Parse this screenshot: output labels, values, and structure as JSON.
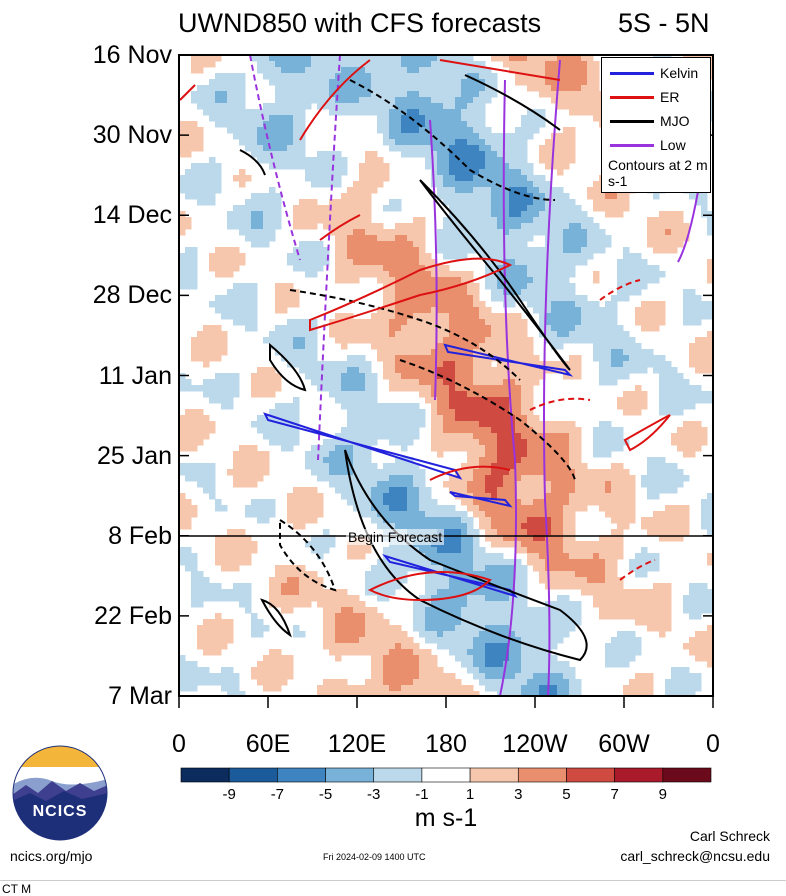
{
  "chart_data": {
    "type": "heatmap",
    "title": "UWND850 with CFS forecasts",
    "subtitle": "5S - 5N",
    "x_axis": {
      "ticks": [
        "0",
        "60E",
        "120E",
        "180",
        "120W",
        "60W",
        "0"
      ],
      "longitudes": [
        0,
        60,
        120,
        180,
        240,
        300,
        360
      ]
    },
    "y_axis": {
      "ticks": [
        "16 Nov",
        "30 Nov",
        "14 Dec",
        "28 Dec",
        "11 Jan",
        "25 Jan",
        "8 Feb",
        "22 Feb",
        "7 Mar"
      ],
      "day_offsets": [
        0,
        14,
        28,
        42,
        56,
        70,
        84,
        98,
        112
      ]
    },
    "colorbar": {
      "units": "m s-1",
      "tick_labels": [
        "-9",
        "-7",
        "-5",
        "-3",
        "-1",
        "1",
        "3",
        "5",
        "7",
        "9"
      ],
      "colors": [
        "#0b2c5c",
        "#1c5b9b",
        "#3e84c0",
        "#79b2d8",
        "#bcd9ec",
        "#ffffff",
        "#f7c7ad",
        "#ea8f6e",
        "#cf4a41",
        "#a91a2a",
        "#6b0a1a"
      ]
    },
    "legend": {
      "entries": [
        {
          "name": "Kelvin",
          "color": "#2222dd"
        },
        {
          "name": "ER",
          "color": "#dd1111"
        },
        {
          "name": "MJO",
          "color": "#000000"
        },
        {
          "name": "Low",
          "color": "#9933dd"
        }
      ],
      "note": "Contours at 2 m s-1",
      "placement": "top-right"
    },
    "forecast_start": {
      "label": "Begin Forecast",
      "day_offset": 84
    },
    "grid": false
  },
  "footer": {
    "logo_text": "NCICS",
    "site": "ncics.org/mjo",
    "timestamp": "Fri 2024-02-09 1400 UTC",
    "author": "Carl Schreck",
    "email": "carl_schreck@ncsu.edu"
  },
  "cut_off_text": "CT M"
}
